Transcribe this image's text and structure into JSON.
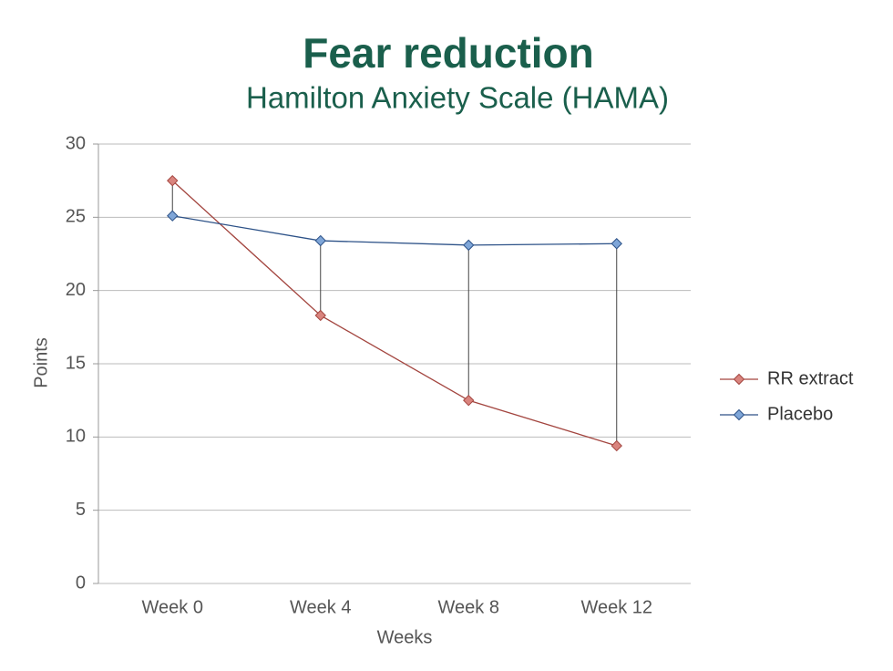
{
  "chart_data": {
    "type": "line",
    "title": "Fear reduction",
    "subtitle": "Hamilton Anxiety Scale (HAMA)",
    "x_label": "Weeks",
    "y_label": "Points",
    "categories": [
      "Week 0",
      "Week 4",
      "Week 8",
      "Week 12"
    ],
    "series": [
      {
        "name": "RR extract",
        "color": "#a3453f",
        "marker_color": "#d9847e",
        "values": [
          27.5,
          18.3,
          12.5,
          9.4
        ]
      },
      {
        "name": "Placebo",
        "color": "#2d5288",
        "marker_color": "#7fa6d8",
        "values": [
          25.1,
          23.4,
          23.1,
          23.2
        ]
      }
    ],
    "ylim": [
      0,
      30
    ],
    "yticks": [
      0,
      5,
      10,
      15,
      20,
      25,
      30
    ],
    "grid": true,
    "drop_lines": true,
    "legend": "right"
  }
}
